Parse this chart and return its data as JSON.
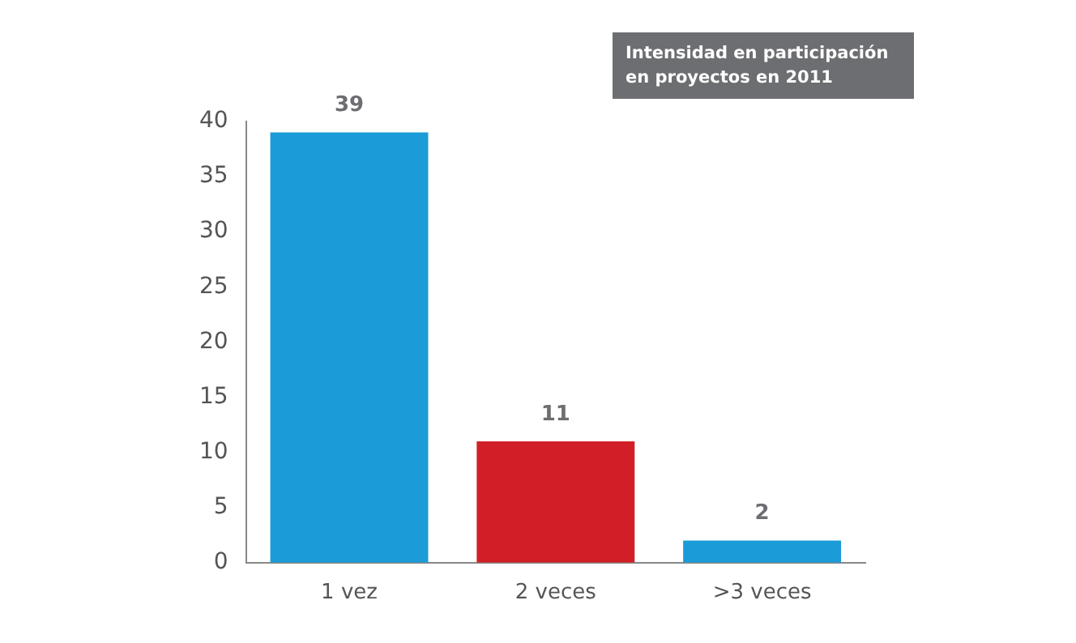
{
  "chart_data": {
    "type": "bar",
    "title": "Intensidad en participación en proyectos en 2011",
    "categories": [
      "1 vez",
      "2 veces",
      ">3 veces"
    ],
    "values": [
      39,
      11,
      2
    ],
    "colors": [
      "#1b9bd7",
      "#d21f27",
      "#1b9bd7"
    ],
    "ylim": [
      0,
      40
    ],
    "yticks": [
      0,
      5,
      10,
      15,
      20,
      25,
      30,
      35,
      40
    ],
    "grid": false,
    "data_labels": true
  }
}
